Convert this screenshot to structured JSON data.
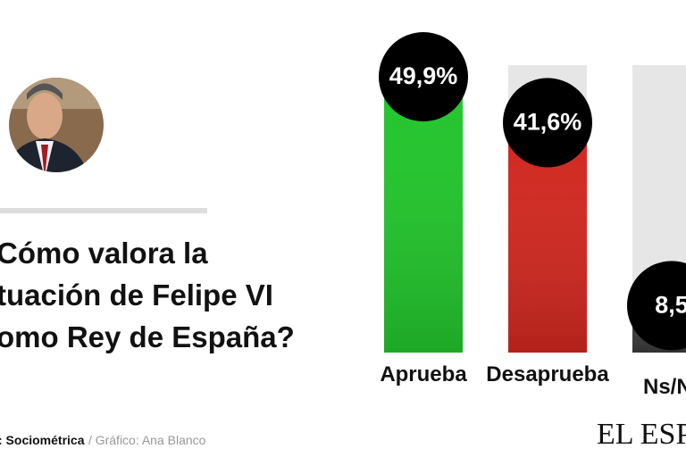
{
  "title_lines": [
    "Cómo valora la",
    "tuación de Felipe VI",
    "omo Rey de España?"
  ],
  "source": ": Sociométrica",
  "credit": "/ Gráfico: Ana Blanco",
  "logo": "EL ESPA",
  "chart_data": {
    "type": "bar",
    "categories": [
      "Aprueba",
      "Desaprueba",
      "Ns/N"
    ],
    "values": [
      49.9,
      41.6,
      8.5
    ],
    "value_labels": [
      "49,9%",
      "41,6%",
      "8,5"
    ],
    "colors": [
      "#22c52c",
      "#d1281f",
      "#3a3a3a"
    ],
    "ylim": [
      0,
      52
    ]
  }
}
